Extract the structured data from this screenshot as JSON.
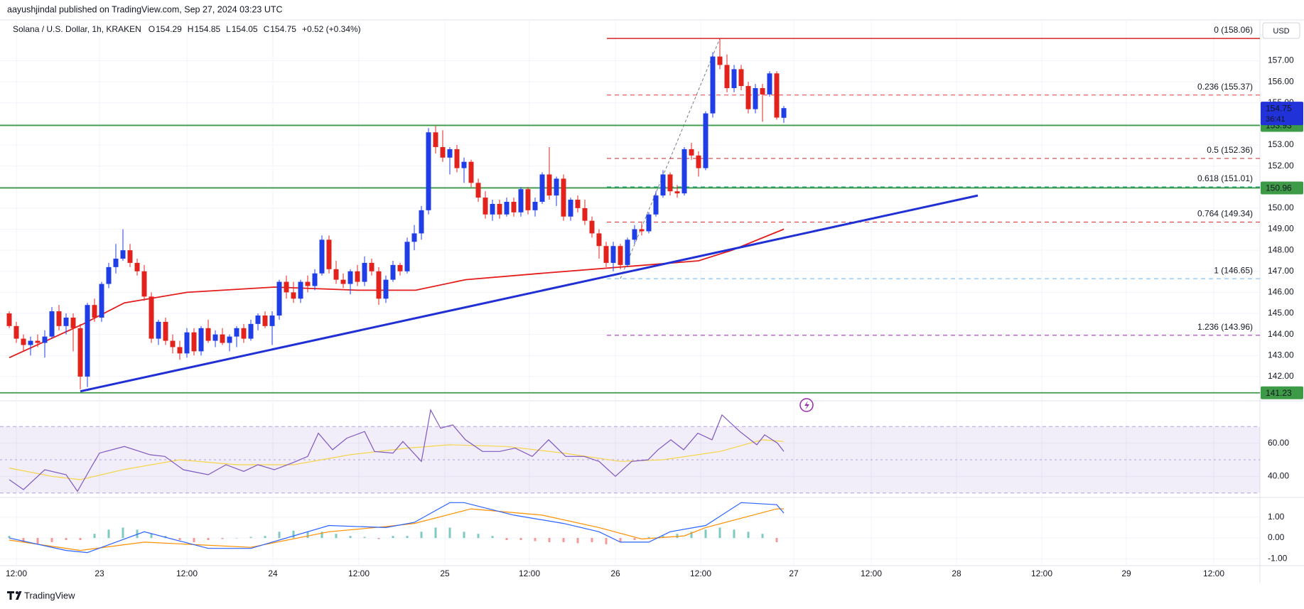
{
  "header": "aayushjindal published on TradingView.com, Sep 27, 2024 03:23 UTC",
  "brand": "TradingView",
  "chart_data": {
    "type": "candlestick",
    "title": "Solana / U.S. Dollar, 1h, KRAKEN",
    "legend": [
      {
        "label": "O",
        "value": 154.29
      },
      {
        "label": "H",
        "value": 154.85
      },
      {
        "label": "L",
        "value": 154.05
      },
      {
        "label": "C",
        "value": 154.75
      }
    ],
    "change": "+0.52 (+0.34%)",
    "currency": "USD",
    "up_color": "#1f3ee6",
    "down_color": "#e2231d",
    "grid": true,
    "xlim": [
      -1.3,
      176
    ],
    "xticks": [
      {
        "value": 1,
        "label": "12:00"
      },
      {
        "value": 12.7,
        "label": "23"
      },
      {
        "value": 25,
        "label": "12:00"
      },
      {
        "value": 37.1,
        "label": "24"
      },
      {
        "value": 49.2,
        "label": "12:00"
      },
      {
        "value": 61.3,
        "label": "25"
      },
      {
        "value": 73.2,
        "label": "12:00"
      },
      {
        "value": 85.3,
        "label": "26"
      },
      {
        "value": 97.3,
        "label": "12:00"
      },
      {
        "value": 110.4,
        "label": "27"
      },
      {
        "value": 121.3,
        "label": "12:00"
      },
      {
        "value": 133.3,
        "label": "28"
      },
      {
        "value": 145.3,
        "label": "12:00"
      },
      {
        "value": 157.2,
        "label": "29"
      },
      {
        "value": 169.5,
        "label": "12:00"
      }
    ],
    "ylim": [
      140.85,
      158.94
    ],
    "yticks": [
      {
        "value": 142,
        "label": "142.00"
      },
      {
        "value": 143,
        "label": "143.00"
      },
      {
        "value": 144,
        "label": "144.00"
      },
      {
        "value": 145,
        "label": "145.00"
      },
      {
        "value": 146,
        "label": "146.00"
      },
      {
        "value": 147,
        "label": "147.00"
      },
      {
        "value": 148,
        "label": "148.00"
      },
      {
        "value": 149,
        "label": "149.00"
      },
      {
        "value": 150,
        "label": "150.00"
      },
      {
        "value": 151,
        "label": "151.00"
      },
      {
        "value": 152,
        "label": "152.00"
      },
      {
        "value": 153,
        "label": "153.00"
      },
      {
        "value": 154,
        "label": "154.00"
      },
      {
        "value": 155,
        "label": "155.00"
      },
      {
        "value": 156,
        "label": "156.00"
      },
      {
        "value": 157,
        "label": "157.00"
      }
    ],
    "ohlc": [
      [
        145.0,
        145.1,
        144.3,
        144.4
      ],
      [
        144.4,
        144.6,
        143.6,
        143.8
      ],
      [
        143.8,
        144.0,
        143.2,
        143.5
      ],
      [
        143.5,
        143.9,
        143.0,
        143.7
      ],
      [
        143.7,
        144.0,
        143.4,
        143.6
      ],
      [
        143.6,
        144.2,
        142.9,
        143.9
      ],
      [
        143.9,
        145.3,
        143.8,
        145.1
      ],
      [
        145.1,
        145.4,
        144.2,
        144.4
      ],
      [
        144.4,
        145.0,
        144.0,
        144.8
      ],
      [
        144.8,
        145.0,
        143.2,
        144.3
      ],
      [
        144.3,
        144.5,
        141.4,
        142.0
      ],
      [
        142.0,
        145.5,
        141.5,
        145.4
      ],
      [
        145.4,
        145.7,
        144.6,
        144.8
      ],
      [
        144.8,
        146.5,
        144.6,
        146.4
      ],
      [
        146.4,
        147.4,
        146.2,
        147.2
      ],
      [
        147.2,
        148.3,
        146.9,
        147.6
      ],
      [
        147.6,
        149.0,
        147.5,
        148.0
      ],
      [
        148.0,
        148.3,
        147.2,
        147.4
      ],
      [
        147.4,
        147.6,
        146.8,
        147.0
      ],
      [
        147.0,
        147.3,
        145.6,
        145.8
      ],
      [
        145.8,
        146.0,
        143.6,
        143.8
      ],
      [
        143.8,
        144.7,
        143.5,
        144.6
      ],
      [
        144.6,
        144.8,
        143.5,
        143.7
      ],
      [
        143.7,
        144.0,
        143.1,
        143.4
      ],
      [
        143.4,
        143.7,
        142.8,
        143.1
      ],
      [
        143.1,
        144.3,
        142.9,
        144.1
      ],
      [
        144.1,
        144.3,
        143.0,
        143.2
      ],
      [
        143.2,
        144.4,
        143.0,
        144.3
      ],
      [
        144.3,
        144.7,
        143.6,
        143.7
      ],
      [
        143.7,
        144.2,
        143.4,
        144.0
      ],
      [
        144.0,
        144.3,
        143.5,
        143.6
      ],
      [
        143.6,
        144.0,
        143.2,
        143.9
      ],
      [
        143.9,
        144.4,
        143.4,
        144.3
      ],
      [
        144.3,
        144.5,
        143.6,
        143.8
      ],
      [
        143.8,
        144.7,
        143.7,
        144.5
      ],
      [
        144.5,
        145.0,
        144.2,
        144.9
      ],
      [
        144.9,
        145.1,
        144.3,
        144.4
      ],
      [
        144.4,
        145.1,
        143.5,
        144.9
      ],
      [
        144.9,
        146.6,
        144.7,
        146.5
      ],
      [
        146.5,
        146.8,
        145.7,
        146.0
      ],
      [
        146.0,
        146.5,
        145.5,
        145.7
      ],
      [
        145.7,
        146.6,
        145.5,
        146.5
      ],
      [
        146.5,
        146.8,
        146.0,
        146.3
      ],
      [
        146.3,
        147.1,
        146.1,
        146.9
      ],
      [
        146.9,
        148.7,
        146.8,
        148.5
      ],
      [
        148.5,
        148.7,
        146.9,
        147.1
      ],
      [
        147.1,
        147.5,
        146.4,
        146.6
      ],
      [
        146.6,
        146.9,
        146.2,
        146.4
      ],
      [
        146.4,
        147.1,
        145.9,
        147.0
      ],
      [
        147.0,
        147.3,
        146.3,
        146.5
      ],
      [
        146.5,
        147.7,
        146.3,
        147.4
      ],
      [
        147.4,
        147.6,
        146.8,
        147.0
      ],
      [
        147.0,
        147.2,
        145.4,
        145.7
      ],
      [
        145.7,
        146.8,
        145.5,
        146.6
      ],
      [
        146.6,
        147.5,
        146.5,
        147.3
      ],
      [
        147.3,
        147.4,
        146.8,
        147.0
      ],
      [
        147.0,
        148.6,
        146.9,
        148.4
      ],
      [
        148.4,
        149.2,
        148.0,
        148.8
      ],
      [
        148.8,
        150.1,
        148.5,
        149.9
      ],
      [
        149.9,
        153.8,
        149.7,
        153.6
      ],
      [
        153.6,
        153.9,
        152.6,
        152.9
      ],
      [
        152.9,
        153.7,
        152.2,
        152.4
      ],
      [
        152.4,
        152.9,
        151.6,
        152.8
      ],
      [
        152.8,
        153.0,
        151.7,
        151.9
      ],
      [
        151.9,
        152.4,
        151.2,
        152.2
      ],
      [
        152.2,
        152.3,
        151.0,
        151.2
      ],
      [
        151.2,
        151.4,
        150.3,
        150.5
      ],
      [
        150.5,
        150.8,
        149.5,
        149.7
      ],
      [
        149.7,
        150.4,
        149.4,
        150.2
      ],
      [
        150.2,
        150.4,
        149.5,
        149.7
      ],
      [
        149.7,
        150.5,
        149.6,
        150.3
      ],
      [
        150.3,
        150.5,
        149.6,
        149.8
      ],
      [
        149.8,
        151.0,
        149.6,
        150.9
      ],
      [
        150.9,
        151.0,
        149.7,
        149.9
      ],
      [
        149.9,
        150.5,
        149.6,
        150.3
      ],
      [
        150.3,
        151.7,
        150.2,
        151.6
      ],
      [
        151.6,
        152.9,
        150.4,
        150.6
      ],
      [
        150.6,
        151.5,
        150.1,
        151.4
      ],
      [
        151.4,
        151.6,
        149.4,
        149.6
      ],
      [
        149.6,
        150.5,
        149.4,
        150.4
      ],
      [
        150.4,
        150.6,
        149.8,
        150.0
      ],
      [
        150.0,
        150.4,
        149.2,
        149.4
      ],
      [
        149.4,
        149.6,
        148.6,
        148.8
      ],
      [
        148.8,
        149.0,
        147.6,
        148.2
      ],
      [
        148.2,
        148.4,
        147.2,
        147.4
      ],
      [
        147.4,
        148.4,
        147.0,
        148.2
      ],
      [
        148.2,
        148.3,
        147.1,
        147.3
      ],
      [
        147.3,
        148.6,
        147.2,
        148.5
      ],
      [
        148.5,
        149.2,
        148.3,
        149.0
      ],
      [
        149.0,
        149.3,
        148.7,
        148.9
      ],
      [
        148.9,
        149.8,
        148.8,
        149.7
      ],
      [
        149.7,
        150.8,
        149.6,
        150.6
      ],
      [
        150.6,
        151.8,
        150.5,
        151.6
      ],
      [
        151.6,
        151.7,
        150.6,
        150.8
      ],
      [
        150.8,
        151.1,
        150.5,
        150.7
      ],
      [
        150.7,
        152.9,
        150.6,
        152.8
      ],
      [
        152.8,
        153.1,
        152.3,
        152.5
      ],
      [
        152.5,
        152.7,
        151.5,
        151.9
      ],
      [
        151.9,
        154.6,
        151.8,
        154.5
      ],
      [
        154.5,
        157.4,
        154.3,
        157.2
      ],
      [
        157.2,
        158.06,
        156.6,
        156.8
      ],
      [
        156.8,
        157.3,
        155.5,
        155.7
      ],
      [
        155.7,
        156.8,
        155.5,
        156.6
      ],
      [
        156.6,
        156.8,
        155.6,
        155.8
      ],
      [
        155.8,
        156.0,
        154.5,
        154.7
      ],
      [
        154.7,
        155.9,
        154.5,
        155.7
      ],
      [
        155.7,
        155.9,
        154.1,
        155.4
      ],
      [
        155.4,
        156.5,
        155.3,
        156.4
      ],
      [
        156.4,
        156.5,
        154.2,
        154.3
      ],
      [
        154.29,
        154.85,
        154.05,
        154.75
      ]
    ],
    "levels": [
      {
        "value": 153.93,
        "color": "#3d9a47"
      },
      {
        "value": 150.96,
        "color": "#3d9a47"
      },
      {
        "value": 141.23,
        "color": "#3d9a47"
      }
    ],
    "last_price": {
      "value": 154.75,
      "countdown": "36:41",
      "color": "#2132d8"
    },
    "trendline": {
      "x": [
        10,
        136.3
      ],
      "y": [
        141.3,
        150.6
      ],
      "color": "#2130d4"
    },
    "ma": {
      "x": [
        0,
        10.4,
        16.2,
        25,
        37.3,
        49,
        57.2,
        64.2,
        74.8,
        85.9,
        97,
        101.7,
        109
      ],
      "values": [
        142.9,
        144.5,
        145.5,
        146.0,
        146.25,
        146.1,
        146.1,
        146.6,
        146.9,
        147.2,
        147.5,
        148.0,
        149.0
      ],
      "color": "#e51c1c"
    },
    "fib": {
      "start": 84.1,
      "anchor": {
        "x": [
          86,
          100
        ],
        "y": [
          146.65,
          158.06
        ]
      },
      "levels": [
        {
          "value": 158.06,
          "label": "0 (158.06)",
          "color": "#d32626",
          "style": "solid",
          "label_color": "#787b86"
        },
        {
          "value": 155.37,
          "label": "0.236 (155.37)",
          "color": "#e53935",
          "style": "dashed",
          "label_color": "#e53935"
        },
        {
          "value": 152.36,
          "label": "0.5 (152.36)",
          "color": "#c62828",
          "style": "dashed",
          "label_color": "#c62828"
        },
        {
          "value": 151.01,
          "label": "0.618 (151.01)",
          "color": "#089981",
          "style": "dashed",
          "label_color": "#089981"
        },
        {
          "value": 149.34,
          "label": "0.764 (149.34)",
          "color": "#d32f2f",
          "style": "dashed",
          "label_color": "#b71c1c"
        },
        {
          "value": 146.65,
          "label": "1 (146.65)",
          "color": "#64b5f6",
          "style": "dashed",
          "label_color": "#64b5f6"
        },
        {
          "value": 143.96,
          "label": "1.236 (143.96)",
          "color": "#9c27b0",
          "style": "dashed",
          "label_color": "#9c27b0"
        }
      ]
    },
    "rsi": {
      "ylim": [
        27.3,
        85.5
      ],
      "yticks": [
        {
          "value": 60,
          "label": "60.00"
        },
        {
          "value": 40,
          "label": "40.00"
        }
      ],
      "band": [
        30,
        70
      ],
      "mid": 50,
      "color": "#7e57c2",
      "ma_color": "#f5d44a",
      "x": [
        0,
        2,
        5,
        8,
        9.6,
        11.6,
        12.7,
        16.2,
        19.8,
        21.9,
        24.5,
        28,
        30.5,
        33,
        35,
        37.3,
        39.8,
        42,
        43.5,
        45.5,
        47.5,
        50,
        51.4,
        54,
        55.4,
        58,
        59.3,
        60.7,
        62.4,
        64.2,
        66.6,
        69,
        71.2,
        73.6,
        75.9,
        78.3,
        80.9,
        83,
        85.3,
        87.6,
        89.9,
        91.3,
        93.1,
        94.9,
        96.9,
        98.9,
        100.3,
        102.8,
        105.2,
        106.3,
        108.1,
        109
      ],
      "values": [
        38,
        32,
        44,
        41,
        31,
        46,
        54,
        58,
        53,
        52,
        44,
        41,
        47,
        43,
        47,
        44,
        48,
        52,
        66,
        56,
        63,
        67,
        55,
        54,
        61,
        49,
        80,
        69,
        71,
        62,
        55,
        55,
        57,
        52,
        62,
        52,
        52,
        49,
        40,
        49,
        50,
        56,
        62,
        56,
        66,
        62,
        77,
        67,
        59,
        65,
        60,
        55
      ],
      "ma_x": [
        0,
        6,
        10,
        16,
        24,
        32,
        40,
        48,
        56,
        62,
        70,
        78,
        86,
        92,
        100,
        106,
        109
      ],
      "ma_values": [
        45,
        40,
        38,
        44,
        50,
        47,
        47,
        53,
        57,
        59,
        58,
        54,
        49,
        50,
        55,
        62,
        61
      ]
    },
    "macd": {
      "ylim": [
        -1.33,
        1.95
      ],
      "yticks": [
        {
          "value": 1,
          "label": "1.00"
        },
        {
          "value": 0,
          "label": "0.00"
        },
        {
          "value": -1,
          "label": "-1.00"
        }
      ],
      "color": "#2962ff",
      "signal_color": "#ff8f00",
      "pos_color": "#26a69a",
      "neg_color": "#ef5350",
      "x": [
        0,
        8,
        11,
        19,
        28,
        34,
        45,
        53,
        57,
        62,
        64,
        71,
        78,
        83,
        86,
        90,
        93,
        98,
        103,
        108,
        109
      ],
      "values": [
        0,
        -0.6,
        -0.7,
        0.3,
        -0.5,
        -0.5,
        0.6,
        0.5,
        0.75,
        1.7,
        1.7,
        1.1,
        0.7,
        0.3,
        -0.2,
        -0.2,
        0.3,
        0.6,
        1.7,
        1.6,
        1.2
      ],
      "signal_x": [
        0,
        10,
        19,
        34,
        45,
        53,
        57,
        65,
        75,
        83,
        89,
        95,
        98,
        108,
        109
      ],
      "signal_values": [
        -0.1,
        -0.6,
        -0.2,
        -0.45,
        0.3,
        0.55,
        0.7,
        1.4,
        1.1,
        0.5,
        -0.05,
        0.1,
        0.5,
        1.4,
        1.4
      ],
      "hist_x": [
        0,
        2,
        4,
        6,
        8,
        10,
        12,
        14,
        16,
        18,
        20,
        22,
        24,
        26,
        28,
        30,
        32,
        34,
        36,
        38,
        40,
        42,
        44,
        46,
        48,
        50,
        52,
        54,
        56,
        58,
        60,
        62,
        64,
        66,
        68,
        70,
        72,
        74,
        76,
        78,
        80,
        82,
        84,
        86,
        88,
        90,
        92,
        94,
        96,
        98,
        100,
        102,
        104,
        106,
        108
      ],
      "hist_values": [
        0.1,
        -0.2,
        -0.3,
        -0.2,
        -0.1,
        -0.1,
        0.2,
        0.4,
        0.5,
        0.4,
        0.2,
        0.1,
        -0.1,
        -0.2,
        -0.1,
        -0.05,
        0,
        0.05,
        0.1,
        0.3,
        0.35,
        0.3,
        0.3,
        0.2,
        0.1,
        0.05,
        -0.05,
        0.1,
        0.1,
        0.3,
        0.5,
        0.5,
        0.3,
        0.2,
        0.1,
        -0.1,
        -0.1,
        -0.15,
        -0.2,
        -0.2,
        -0.25,
        -0.2,
        -0.3,
        -0.2,
        -0.1,
        0.05,
        0.1,
        0.2,
        0.3,
        0.4,
        0.5,
        0.4,
        0.3,
        0.2,
        -0.2
      ]
    }
  }
}
